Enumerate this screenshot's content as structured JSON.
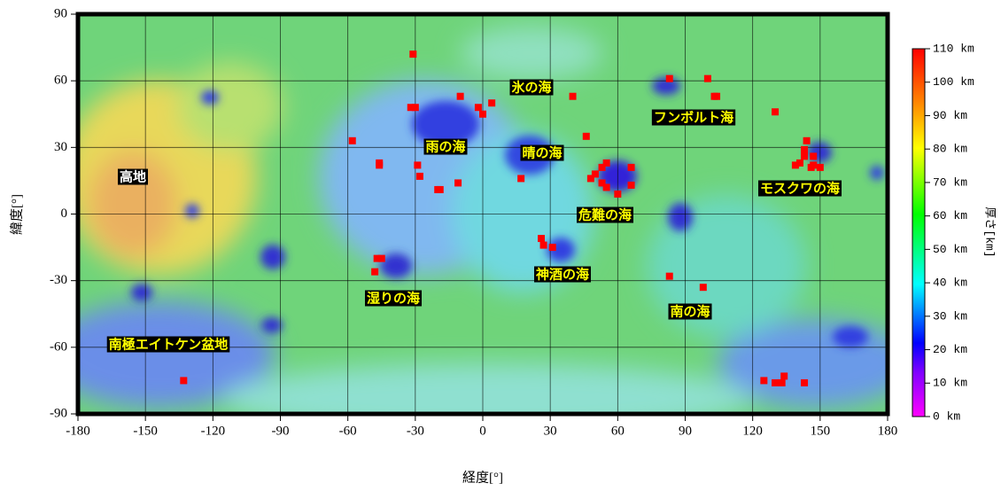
{
  "chart_data": {
    "type": "scatter",
    "xlabel": "経度[°]",
    "ylabel": "緯度[°]",
    "xlim": [
      -180,
      180
    ],
    "ylim": [
      -90,
      90
    ],
    "xticks": [
      -180,
      -150,
      -120,
      -90,
      -60,
      -30,
      0,
      30,
      60,
      90,
      120,
      150,
      180
    ],
    "yticks": [
      -90,
      -60,
      -30,
      0,
      30,
      60,
      90
    ],
    "grid": true,
    "series": [
      {
        "color": "#ff0000",
        "x": [
          -31,
          -32,
          -30,
          -58,
          -46,
          -46,
          -29,
          -28,
          -20,
          -19,
          -11,
          -10,
          4,
          -2,
          0,
          40,
          17,
          46,
          48,
          50,
          53,
          55,
          53,
          55,
          60,
          66,
          66,
          26,
          27,
          31,
          -45,
          -47,
          -48,
          83,
          98,
          83,
          100,
          103,
          104,
          130,
          144,
          143,
          141,
          143,
          147,
          147,
          150,
          146,
          139,
          -133,
          125,
          130,
          133,
          134,
          143
        ],
        "y": [
          72,
          48,
          48,
          33,
          23,
          22,
          22,
          17,
          11,
          11,
          14,
          53,
          50,
          48,
          45,
          53,
          16,
          35,
          16,
          18,
          21,
          23,
          14,
          12,
          9,
          21,
          13,
          -11,
          -14,
          -15,
          -20,
          -20,
          -26,
          -28,
          -33,
          61,
          61,
          53,
          53,
          46,
          33,
          29,
          23,
          26,
          22,
          26,
          21,
          21,
          22,
          -75,
          -75,
          -76,
          -76,
          -73,
          -76
        ]
      }
    ],
    "annotations": [
      "高地",
      "雨の海",
      "晴の海",
      "氷の海",
      "フンボルト海",
      "モスクワの海",
      "危難の海",
      "神酒の海",
      "湿りの海",
      "南の海",
      "南極エイトケン盆地"
    ],
    "colorbar": {
      "label": "厚さ[km]",
      "lim": [
        0,
        110
      ],
      "ticks": [
        {
          "value": 0,
          "label": "0 km"
        },
        {
          "value": 10,
          "label": "10 km"
        },
        {
          "value": 20,
          "label": "20 km"
        },
        {
          "value": 30,
          "label": "30 km"
        },
        {
          "value": 40,
          "label": "40 km"
        },
        {
          "value": 50,
          "label": "50 km"
        },
        {
          "value": 60,
          "label": "60 km"
        },
        {
          "value": 70,
          "label": "70 km"
        },
        {
          "value": 80,
          "label": "80 km"
        },
        {
          "value": 90,
          "label": "90 km"
        },
        {
          "value": 100,
          "label": "100 km"
        },
        {
          "value": 110,
          "label": "110 km"
        }
      ]
    }
  }
}
